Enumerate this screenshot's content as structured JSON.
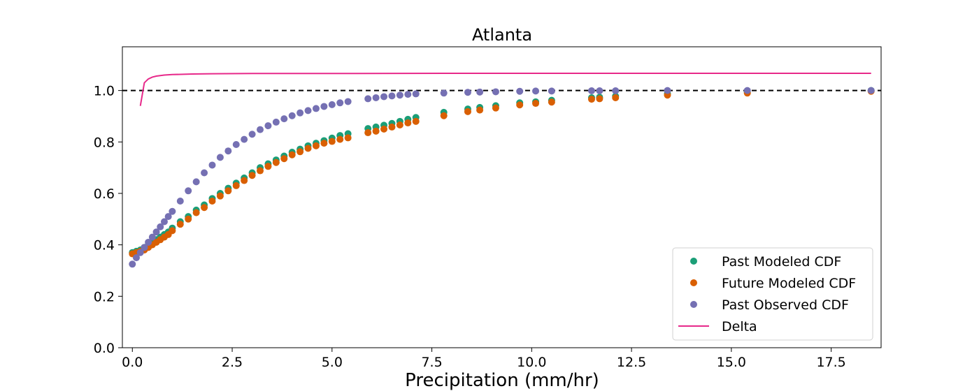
{
  "chart_data": {
    "type": "scatter",
    "title": "Atlanta",
    "xlabel": "Precipitation (mm/hr)",
    "ylabel": "",
    "xlim": [
      -0.25,
      18.75
    ],
    "ylim": [
      0.0,
      1.17
    ],
    "x_ticks": [
      "0.0",
      "2.5",
      "5.0",
      "7.5",
      "10.0",
      "12.5",
      "15.0",
      "17.5"
    ],
    "y_ticks": [
      "0.0",
      "0.2",
      "0.4",
      "0.6",
      "0.8",
      "1.0"
    ],
    "reference_line": {
      "y": 1.0,
      "style": "dashed",
      "color": "#000000"
    },
    "legend_position": "lower-right",
    "series": [
      {
        "name": "Past Modeled CDF",
        "kind": "scatter",
        "color": "#1b9e77",
        "x": [
          0.0,
          0.1,
          0.2,
          0.3,
          0.4,
          0.5,
          0.6,
          0.7,
          0.8,
          0.9,
          1.0,
          1.2,
          1.4,
          1.6,
          1.8,
          2.0,
          2.2,
          2.4,
          2.6,
          2.8,
          3.0,
          3.2,
          3.4,
          3.6,
          3.8,
          4.0,
          4.2,
          4.4,
          4.6,
          4.8,
          5.0,
          5.2,
          5.4,
          5.9,
          6.1,
          6.3,
          6.5,
          6.7,
          6.9,
          7.1,
          7.8,
          8.4,
          8.7,
          9.1,
          9.7,
          10.1,
          10.5,
          11.5,
          11.7,
          12.1,
          13.4,
          15.4,
          18.5
        ],
        "y": [
          0.37,
          0.375,
          0.38,
          0.39,
          0.4,
          0.41,
          0.42,
          0.43,
          0.44,
          0.45,
          0.465,
          0.49,
          0.51,
          0.535,
          0.555,
          0.58,
          0.6,
          0.62,
          0.64,
          0.66,
          0.68,
          0.7,
          0.715,
          0.73,
          0.745,
          0.76,
          0.772,
          0.785,
          0.795,
          0.805,
          0.815,
          0.825,
          0.832,
          0.852,
          0.858,
          0.865,
          0.872,
          0.88,
          0.888,
          0.895,
          0.915,
          0.928,
          0.934,
          0.941,
          0.952,
          0.956,
          0.962,
          0.972,
          0.974,
          0.978,
          0.988,
          0.994,
          1.0
        ]
      },
      {
        "name": "Future Modeled CDF",
        "kind": "scatter",
        "color": "#d95f02",
        "x": [
          0.0,
          0.1,
          0.2,
          0.3,
          0.4,
          0.5,
          0.6,
          0.7,
          0.8,
          0.9,
          1.0,
          1.2,
          1.4,
          1.6,
          1.8,
          2.0,
          2.2,
          2.4,
          2.6,
          2.8,
          3.0,
          3.2,
          3.4,
          3.6,
          3.8,
          4.0,
          4.2,
          4.4,
          4.6,
          4.8,
          5.0,
          5.2,
          5.4,
          5.9,
          6.1,
          6.3,
          6.5,
          6.7,
          6.9,
          7.1,
          7.8,
          8.4,
          8.7,
          9.1,
          9.7,
          10.1,
          10.5,
          11.5,
          11.7,
          12.1,
          13.4,
          15.4,
          18.5
        ],
        "y": [
          0.365,
          0.37,
          0.375,
          0.38,
          0.39,
          0.4,
          0.41,
          0.42,
          0.43,
          0.44,
          0.455,
          0.48,
          0.5,
          0.525,
          0.545,
          0.57,
          0.59,
          0.61,
          0.63,
          0.65,
          0.67,
          0.688,
          0.705,
          0.72,
          0.735,
          0.75,
          0.762,
          0.775,
          0.785,
          0.795,
          0.802,
          0.81,
          0.816,
          0.836,
          0.842,
          0.85,
          0.858,
          0.866,
          0.874,
          0.88,
          0.902,
          0.918,
          0.924,
          0.932,
          0.944,
          0.95,
          0.955,
          0.966,
          0.968,
          0.972,
          0.982,
          0.99,
          0.997
        ]
      },
      {
        "name": "Past Observed CDF",
        "kind": "scatter",
        "color": "#7570b3",
        "x": [
          0.0,
          0.1,
          0.2,
          0.3,
          0.4,
          0.5,
          0.6,
          0.7,
          0.8,
          0.9,
          1.0,
          1.2,
          1.4,
          1.6,
          1.8,
          2.0,
          2.2,
          2.4,
          2.6,
          2.8,
          3.0,
          3.2,
          3.4,
          3.6,
          3.8,
          4.0,
          4.2,
          4.4,
          4.6,
          4.8,
          5.0,
          5.2,
          5.4,
          5.9,
          6.1,
          6.3,
          6.5,
          6.7,
          6.9,
          7.1,
          7.8,
          8.4,
          8.7,
          9.1,
          9.7,
          10.1,
          10.5,
          11.5,
          11.7,
          12.1,
          13.4,
          15.4,
          18.5
        ],
        "y": [
          0.325,
          0.35,
          0.37,
          0.39,
          0.41,
          0.43,
          0.45,
          0.47,
          0.49,
          0.51,
          0.53,
          0.57,
          0.61,
          0.645,
          0.68,
          0.71,
          0.74,
          0.765,
          0.79,
          0.81,
          0.83,
          0.848,
          0.863,
          0.877,
          0.89,
          0.902,
          0.913,
          0.922,
          0.93,
          0.938,
          0.945,
          0.952,
          0.957,
          0.968,
          0.972,
          0.976,
          0.979,
          0.982,
          0.985,
          0.987,
          0.99,
          0.993,
          0.994,
          0.995,
          0.997,
          0.998,
          0.998,
          0.999,
          0.999,
          0.999,
          1.0,
          1.0,
          1.0
        ]
      },
      {
        "name": "Delta",
        "kind": "line",
        "color": "#e7298a",
        "x": [
          0.2,
          0.3,
          0.4,
          0.5,
          0.6,
          0.8,
          1.0,
          1.5,
          2.0,
          3.0,
          5.0,
          8.0,
          12.0,
          18.5
        ],
        "y": [
          0.94,
          1.03,
          1.045,
          1.052,
          1.056,
          1.06,
          1.062,
          1.064,
          1.065,
          1.066,
          1.066,
          1.067,
          1.067,
          1.067
        ]
      }
    ]
  }
}
